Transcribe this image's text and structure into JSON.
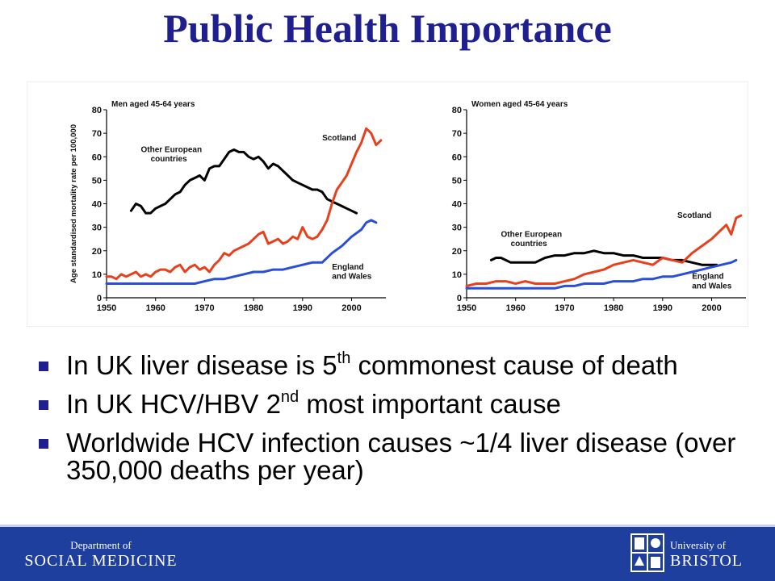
{
  "slide": {
    "title": "Public Health Importance",
    "bullets": [
      {
        "before": "In UK liver disease is 5",
        "sup": "th",
        "after": " commonest cause of death"
      },
      {
        "before": "In UK HCV/HBV 2",
        "sup": "nd",
        "after": " most important cause"
      },
      {
        "before": "Worldwide HCV infection causes ~1/4 liver disease (over 350,000 deaths per year)",
        "sup": "",
        "after": ""
      }
    ]
  },
  "footer": {
    "dept_small": "Department of",
    "dept_big": "SOCIAL MEDICINE",
    "uni_small": "University of",
    "uni_big": "BRISTOL"
  },
  "colors": {
    "title": "#1f1f8f",
    "footer": "#1f3f9f",
    "bullet": "#1f1f8f",
    "europe": "#000000",
    "scotland": "#e8401c",
    "england": "#2a4fd6"
  },
  "chart_data": [
    {
      "type": "line",
      "title": "Men aged 45-64 years",
      "ylabel": "Age standardised mortality rate per 100,000",
      "xlabel": "",
      "xlim": [
        1950,
        2007
      ],
      "ylim": [
        0,
        80
      ],
      "xticks": [
        1950,
        1960,
        1970,
        1980,
        1990,
        2000
      ],
      "yticks": [
        0,
        10,
        20,
        30,
        40,
        50,
        60,
        70,
        80
      ],
      "grid": false,
      "series": [
        {
          "name": "Other European countries",
          "color": "#000000",
          "x": [
            1955,
            1956,
            1957,
            1958,
            1959,
            1960,
            1961,
            1962,
            1963,
            1964,
            1965,
            1966,
            1967,
            1968,
            1969,
            1970,
            1971,
            1972,
            1973,
            1974,
            1975,
            1976,
            1977,
            1978,
            1979,
            1980,
            1981,
            1982,
            1983,
            1984,
            1985,
            1986,
            1987,
            1988,
            1989,
            1990,
            1991,
            1992,
            1993,
            1994,
            1995,
            1996,
            1997,
            1998,
            1999,
            2000,
            2001
          ],
          "y": [
            37,
            40,
            39,
            36,
            36,
            38,
            39,
            40,
            42,
            44,
            45,
            48,
            50,
            51,
            52,
            50,
            55,
            56,
            56,
            59,
            62,
            63,
            62,
            62,
            60,
            59,
            60,
            58,
            55,
            57,
            56,
            54,
            52,
            50,
            49,
            48,
            47,
            46,
            46,
            45,
            42,
            41,
            40,
            39,
            38,
            37,
            36
          ]
        },
        {
          "name": "Scotland",
          "color": "#e8401c",
          "x": [
            1950,
            1951,
            1952,
            1953,
            1954,
            1955,
            1956,
            1957,
            1958,
            1959,
            1960,
            1961,
            1962,
            1963,
            1964,
            1965,
            1966,
            1967,
            1968,
            1969,
            1970,
            1971,
            1972,
            1973,
            1974,
            1975,
            1976,
            1977,
            1978,
            1979,
            1980,
            1981,
            1982,
            1983,
            1984,
            1985,
            1986,
            1987,
            1988,
            1989,
            1990,
            1991,
            1992,
            1993,
            1994,
            1995,
            1996,
            1997,
            1998,
            1999,
            2000,
            2001,
            2002,
            2003,
            2004,
            2005,
            2006
          ],
          "y": [
            9,
            9,
            8,
            10,
            9,
            10,
            11,
            9,
            10,
            9,
            11,
            12,
            12,
            11,
            13,
            14,
            11,
            13,
            14,
            12,
            13,
            11,
            14,
            16,
            19,
            18,
            20,
            21,
            22,
            23,
            25,
            27,
            28,
            23,
            24,
            25,
            23,
            24,
            26,
            25,
            30,
            26,
            25,
            26,
            29,
            33,
            40,
            46,
            49,
            52,
            57,
            62,
            66,
            72,
            70,
            65,
            67
          ]
        },
        {
          "name": "England and Wales",
          "color": "#2a4fd6",
          "x": [
            1950,
            1952,
            1954,
            1956,
            1958,
            1960,
            1962,
            1964,
            1966,
            1968,
            1970,
            1972,
            1974,
            1976,
            1978,
            1980,
            1982,
            1984,
            1986,
            1988,
            1990,
            1992,
            1994,
            1996,
            1998,
            2000,
            2002,
            2003,
            2004,
            2005
          ],
          "y": [
            6,
            6,
            6,
            6,
            6,
            6,
            6,
            6,
            6,
            6,
            7,
            8,
            8,
            9,
            10,
            11,
            11,
            12,
            12,
            13,
            14,
            15,
            15,
            19,
            22,
            26,
            29,
            32,
            33,
            32
          ]
        }
      ],
      "annotations": [
        {
          "text": "Other European",
          "x": 1957,
          "y": 62
        },
        {
          "text": "countries",
          "x": 1959,
          "y": 58
        },
        {
          "text": "Scotland",
          "x": 1994,
          "y": 67
        },
        {
          "text": "England",
          "x": 1996,
          "y": 12
        },
        {
          "text": "and Wales",
          "x": 1996,
          "y": 8
        }
      ]
    },
    {
      "type": "line",
      "title": "Women aged 45-64 years",
      "ylabel": "",
      "xlabel": "",
      "xlim": [
        1950,
        2007
      ],
      "ylim": [
        0,
        80
      ],
      "xticks": [
        1950,
        1960,
        1970,
        1980,
        1990,
        2000
      ],
      "yticks": [
        0,
        10,
        20,
        30,
        40,
        50,
        60,
        70,
        80
      ],
      "grid": false,
      "series": [
        {
          "name": "Other European countries",
          "color": "#000000",
          "x": [
            1955,
            1956,
            1957,
            1958,
            1959,
            1960,
            1962,
            1964,
            1966,
            1968,
            1970,
            1972,
            1974,
            1976,
            1978,
            1980,
            1982,
            1984,
            1986,
            1988,
            1990,
            1992,
            1994,
            1996,
            1998,
            2000,
            2001
          ],
          "y": [
            16,
            17,
            17,
            16,
            15,
            15,
            15,
            15,
            17,
            18,
            18,
            19,
            19,
            20,
            19,
            19,
            18,
            18,
            17,
            17,
            17,
            16,
            16,
            15,
            14,
            14,
            14
          ]
        },
        {
          "name": "Scotland",
          "color": "#e8401c",
          "x": [
            1950,
            1952,
            1954,
            1956,
            1958,
            1960,
            1962,
            1964,
            1966,
            1968,
            1970,
            1972,
            1974,
            1976,
            1978,
            1980,
            1982,
            1984,
            1986,
            1988,
            1990,
            1992,
            1994,
            1996,
            1998,
            2000,
            2002,
            2003,
            2004,
            2005,
            2006
          ],
          "y": [
            5,
            6,
            6,
            7,
            7,
            6,
            7,
            6,
            6,
            6,
            7,
            8,
            10,
            11,
            12,
            14,
            15,
            16,
            15,
            14,
            17,
            16,
            15,
            19,
            22,
            25,
            29,
            31,
            27,
            34,
            35
          ]
        },
        {
          "name": "England and Wales",
          "color": "#2a4fd6",
          "x": [
            1950,
            1952,
            1954,
            1956,
            1958,
            1960,
            1962,
            1964,
            1966,
            1968,
            1970,
            1972,
            1974,
            1976,
            1978,
            1980,
            1982,
            1984,
            1986,
            1988,
            1990,
            1992,
            1994,
            1996,
            1998,
            2000,
            2002,
            2004,
            2005
          ],
          "y": [
            4,
            4,
            4,
            4,
            4,
            4,
            4,
            4,
            4,
            4,
            5,
            5,
            6,
            6,
            6,
            7,
            7,
            7,
            8,
            8,
            9,
            9,
            10,
            11,
            12,
            13,
            14,
            15,
            16
          ]
        }
      ],
      "annotations": [
        {
          "text": "Scotland",
          "x": 1993,
          "y": 34
        },
        {
          "text": "Other European",
          "x": 1957,
          "y": 26
        },
        {
          "text": "countries",
          "x": 1959,
          "y": 22
        },
        {
          "text": "England",
          "x": 1996,
          "y": 8
        },
        {
          "text": "and Wales",
          "x": 1996,
          "y": 4
        }
      ]
    }
  ]
}
